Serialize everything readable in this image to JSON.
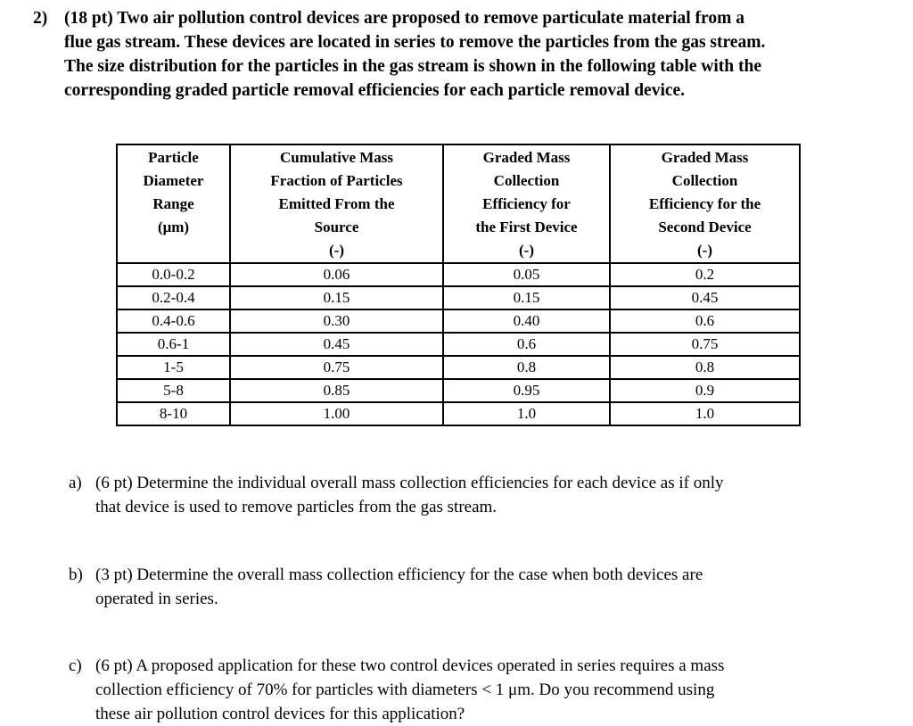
{
  "page": {
    "background": "#ffffff",
    "text_color": "#000000",
    "border_color": "#000000"
  },
  "problem": {
    "number": "2)",
    "statement": "(18 pt) Two air pollution control devices are proposed to remove particulate material from a\nflue gas stream. These devices are located in series to remove the particles from the gas stream.\nThe size distribution for the particles in the gas stream is shown in the following table with the\ncorresponding graded particle removal efficiencies for each particle removal device."
  },
  "table": {
    "headers": [
      "Particle\nDiameter\nRange\n(μm)",
      "Cumulative Mass\nFraction of Particles\nEmitted From the\nSource\n(-)",
      "Graded Mass\nCollection\nEfficiency for\nthe First Device\n(-)",
      "Graded Mass\nCollection\nEfficiency for the\nSecond Device\n(-)"
    ],
    "rows": [
      [
        "0.0-0.2",
        "0.06",
        "0.05",
        "0.2"
      ],
      [
        "0.2-0.4",
        "0.15",
        "0.15",
        "0.45"
      ],
      [
        "0.4-0.6",
        "0.30",
        "0.40",
        "0.6"
      ],
      [
        "0.6-1",
        "0.45",
        "0.6",
        "0.75"
      ],
      [
        "1-5",
        "0.75",
        "0.8",
        "0.8"
      ],
      [
        "5-8",
        "0.85",
        "0.95",
        "0.9"
      ],
      [
        "8-10",
        "1.00",
        "1.0",
        "1.0"
      ]
    ]
  },
  "parts": [
    {
      "label": "a)",
      "text": "(6 pt) Determine the individual overall mass collection efficiencies for each device as if only\nthat device is used to remove particles from the gas stream."
    },
    {
      "label": "b)",
      "text": "(3 pt) Determine the overall mass collection efficiency for the case when both devices are\noperated in series."
    },
    {
      "label": "c)",
      "text": "(6 pt) A proposed application for these two control devices operated in series requires a mass\ncollection efficiency of 70% for particles with diameters < 1 μm. Do you recommend using\nthese air pollution control devices for this application?"
    }
  ]
}
